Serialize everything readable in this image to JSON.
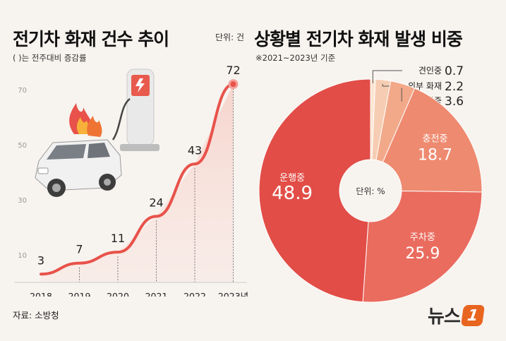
{
  "left": {
    "title": "전기차 화재 건수 추이",
    "subtitle": "( )는 전주대비 증감률",
    "unit": "단위: 건",
    "source": "자료: 소방청"
  },
  "right": {
    "title": "상황별 전기차 화재 발생 비중",
    "subtitle": "※2021~2023년 기준",
    "center_label": "단위: %"
  },
  "logo": {
    "text": "뉴스",
    "badge": "1"
  },
  "colors": {
    "line": "#e8524a",
    "background": "#f7f3ef"
  },
  "chart_data": [
    {
      "type": "line",
      "categories": [
        "2018",
        "2019",
        "2020",
        "2021",
        "2022",
        "2023년"
      ],
      "values": [
        3,
        7,
        11,
        24,
        43,
        72
      ],
      "yticks": [
        10,
        30,
        50,
        70
      ],
      "ylim": [
        0,
        80
      ],
      "grid": false,
      "marker_last": true
    },
    {
      "type": "pie",
      "donut": true,
      "slices": [
        {
          "label": "견인중",
          "value": 0.7,
          "display": "0.7",
          "color": "#fbe6d2",
          "callout": true
        },
        {
          "label": "외부 화재",
          "value": 2.2,
          "display": "2.2",
          "color": "#f6cdb2",
          "callout": true
        },
        {
          "label": "정차중",
          "value": 3.6,
          "display": "3.6",
          "color": "#f2a98a",
          "callout": true
        },
        {
          "label": "충전중",
          "value": 18.7,
          "display": "18.7",
          "color": "#ee8a70",
          "callout": false
        },
        {
          "label": "주차중",
          "value": 25.9,
          "display": "25.9",
          "color": "#ea6c5f",
          "callout": false
        },
        {
          "label": "운행중",
          "value": 48.9,
          "display": "48.9",
          "color": "#e24d47",
          "callout": false
        }
      ]
    }
  ]
}
